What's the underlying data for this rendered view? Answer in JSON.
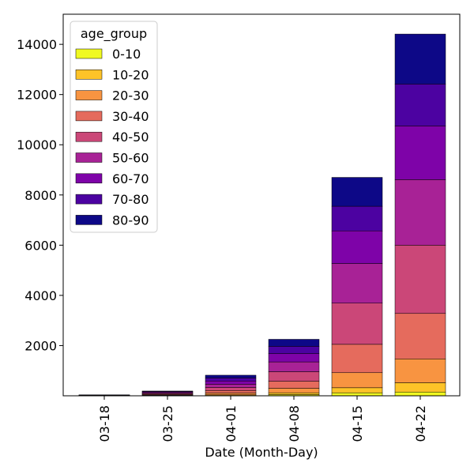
{
  "chart_data": {
    "type": "bar",
    "stacked": true,
    "categories": [
      "03-18",
      "03-25",
      "04-01",
      "04-08",
      "04-15",
      "04-22"
    ],
    "xlabel": "Date (Month-Day)",
    "ylabel": "",
    "ylim": [
      0,
      15000
    ],
    "yticks": [
      2000,
      4000,
      6000,
      8000,
      10000,
      12000,
      14000
    ],
    "grid": false,
    "legend": {
      "title": "age_group",
      "placement": "top-left"
    },
    "series": [
      {
        "name": "0-10",
        "color": "#f0f921",
        "values": [
          1,
          3,
          15,
          50,
          120,
          150
        ]
      },
      {
        "name": "10-20",
        "color": "#fdc328",
        "values": [
          2,
          8,
          25,
          70,
          200,
          370
        ]
      },
      {
        "name": "20-30",
        "color": "#f89441",
        "values": [
          4,
          18,
          70,
          180,
          600,
          950
        ]
      },
      {
        "name": "30-40",
        "color": "#e56b5d",
        "values": [
          5,
          25,
          100,
          280,
          1130,
          1810
        ]
      },
      {
        "name": "40-50",
        "color": "#cb4778",
        "values": [
          6,
          30,
          120,
          380,
          1640,
          2720
        ]
      },
      {
        "name": "50-60",
        "color": "#a82296",
        "values": [
          6,
          35,
          130,
          390,
          1580,
          2610
        ]
      },
      {
        "name": "60-70",
        "color": "#7e03a8",
        "values": [
          5,
          30,
          130,
          330,
          1300,
          2140
        ]
      },
      {
        "name": "70-80",
        "color": "#4c02a1",
        "values": [
          4,
          25,
          120,
          290,
          980,
          1670
        ]
      },
      {
        "name": "80-90",
        "color": "#0d0887",
        "values": [
          3,
          16,
          110,
          280,
          1150,
          1990
        ]
      }
    ]
  }
}
